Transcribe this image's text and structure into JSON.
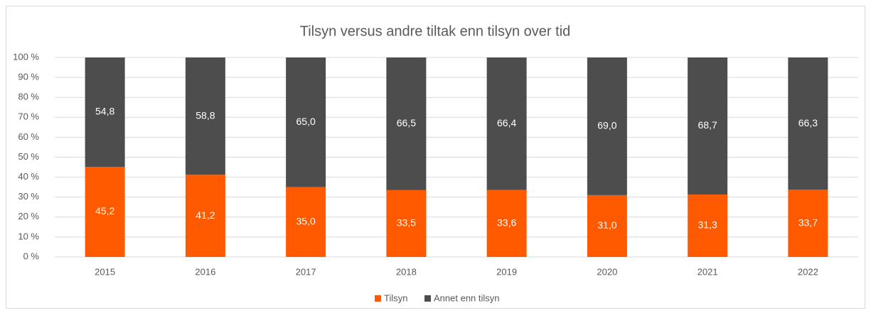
{
  "chart_data": {
    "type": "stacked_bar",
    "title": "Tilsyn versus andre tiltak enn tilsyn over tid",
    "categories": [
      "2015",
      "2016",
      "2017",
      "2018",
      "2019",
      "2020",
      "2021",
      "2022"
    ],
    "series": [
      {
        "name": "Tilsyn",
        "color": "#ff5a00",
        "values": [
          45.2,
          41.2,
          35.0,
          33.5,
          33.6,
          31.0,
          31.3,
          33.7
        ],
        "value_labels": [
          "45,2",
          "41,2",
          "35,0",
          "33,5",
          "33,6",
          "31,0",
          "31,3",
          "33,7"
        ]
      },
      {
        "name": "Annet enn tilsyn",
        "color": "#4d4d4d",
        "values": [
          54.8,
          58.8,
          65.0,
          66.5,
          66.4,
          69.0,
          68.7,
          66.3
        ],
        "value_labels": [
          "54,8",
          "58,8",
          "65,0",
          "66,5",
          "66,4",
          "69,0",
          "68,7",
          "66,3"
        ]
      }
    ],
    "ylim": [
      0,
      100
    ],
    "yticks": [
      {
        "value": 0,
        "label": "0 %"
      },
      {
        "value": 10,
        "label": "10 %"
      },
      {
        "value": 20,
        "label": "20 %"
      },
      {
        "value": 30,
        "label": "30 %"
      },
      {
        "value": 40,
        "label": "40 %"
      },
      {
        "value": 50,
        "label": "50 %"
      },
      {
        "value": 60,
        "label": "60 %"
      },
      {
        "value": 70,
        "label": "70 %"
      },
      {
        "value": 80,
        "label": "80 %"
      },
      {
        "value": 90,
        "label": "90 %"
      },
      {
        "value": 100,
        "label": "100 %"
      }
    ],
    "grid": true,
    "legend": "bottom"
  }
}
